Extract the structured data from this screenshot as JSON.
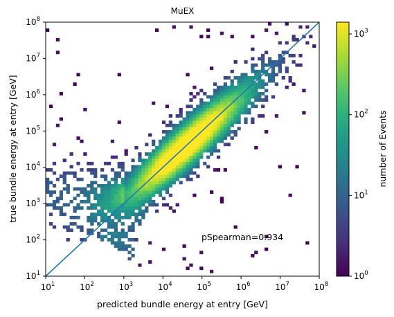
{
  "chart_data": {
    "type": "heatmap",
    "title": "MuEX",
    "xlabel": "predicted bundle energy at entry [GeV]",
    "ylabel": "true bundle energy at entry [GeV]",
    "x_scale": "log",
    "y_scale": "log",
    "xlim": [
      10,
      100000000
    ],
    "ylim": [
      10,
      100000000
    ],
    "x_ticks": [
      {
        "value": 10,
        "base": "10",
        "exp": "1"
      },
      {
        "value": 100,
        "base": "10",
        "exp": "2"
      },
      {
        "value": 1000,
        "base": "10",
        "exp": "3"
      },
      {
        "value": 10000,
        "base": "10",
        "exp": "4"
      },
      {
        "value": 100000,
        "base": "10",
        "exp": "5"
      },
      {
        "value": 1000000,
        "base": "10",
        "exp": "6"
      },
      {
        "value": 10000000,
        "base": "10",
        "exp": "7"
      },
      {
        "value": 100000000,
        "base": "10",
        "exp": "8"
      }
    ],
    "y_ticks": [
      {
        "value": 10,
        "base": "10",
        "exp": "1"
      },
      {
        "value": 100,
        "base": "10",
        "exp": "2"
      },
      {
        "value": 1000,
        "base": "10",
        "exp": "3"
      },
      {
        "value": 10000,
        "base": "10",
        "exp": "4"
      },
      {
        "value": 100000,
        "base": "10",
        "exp": "5"
      },
      {
        "value": 1000000,
        "base": "10",
        "exp": "6"
      },
      {
        "value": 10000000,
        "base": "10",
        "exp": "7"
      },
      {
        "value": 100000000,
        "base": "10",
        "exp": "8"
      }
    ],
    "reference_line": {
      "from": [
        10,
        10
      ],
      "to": [
        100000000,
        100000000
      ],
      "color": "#1f77b4"
    },
    "annotation": "pSpearman=0.934",
    "colorbar": {
      "label": "number of Events",
      "scale": "log",
      "range": [
        1,
        1400
      ],
      "colormap": "viridis",
      "ticks": [
        {
          "value": 1,
          "base": "10",
          "exp": "0"
        },
        {
          "value": 10,
          "base": "10",
          "exp": "1"
        },
        {
          "value": 100,
          "base": "10",
          "exp": "2"
        },
        {
          "value": 1000,
          "base": "10",
          "exp": "3"
        }
      ]
    },
    "grid": false
  }
}
